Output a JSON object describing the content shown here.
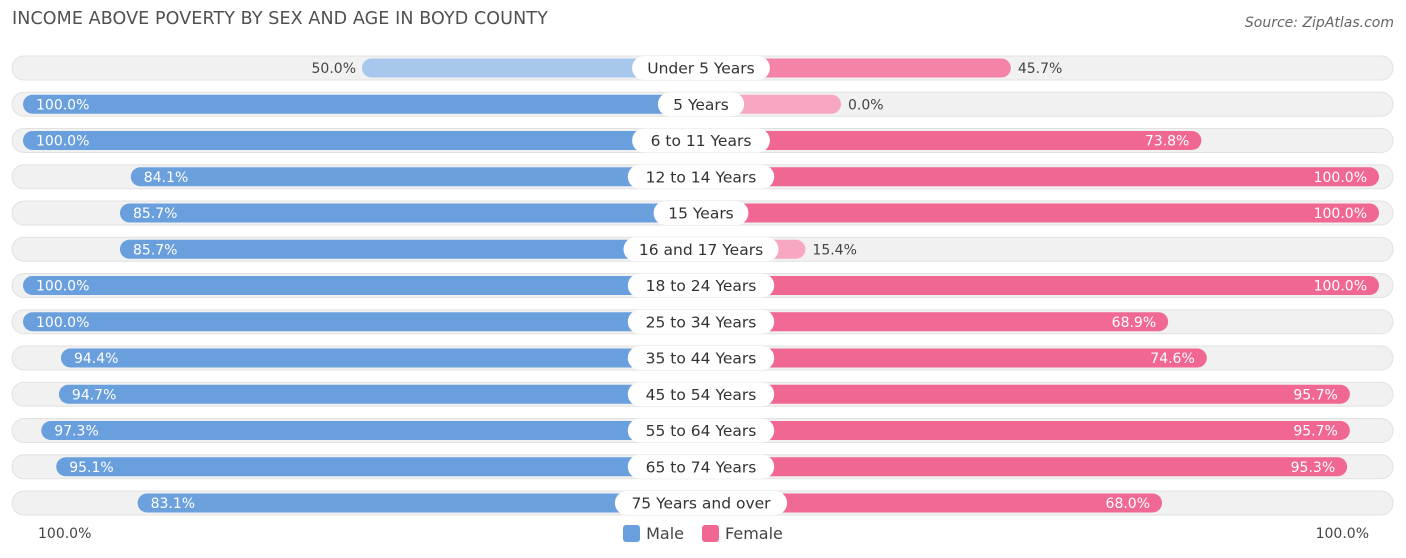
{
  "title": "INCOME ABOVE POVERTY BY SEX AND AGE IN BOYD COUNTY",
  "source": "Source: ZipAtlas.com",
  "colors": {
    "male_strong": "#6a9fdd",
    "male_light": "#a7c8ec",
    "female_strong": "#f06792",
    "female_light": "#f7a7c1",
    "track": "#f1f1f1"
  },
  "axis": {
    "left_label": "100.0%",
    "right_label": "100.0%"
  },
  "legend": {
    "male": "Male",
    "female": "Female"
  },
  "chart_data": {
    "type": "bar",
    "orientation": "horizontal-diverging",
    "title": "INCOME ABOVE POVERTY BY SEX AND AGE IN BOYD COUNTY",
    "xlim": [
      -100,
      100
    ],
    "categories": [
      "Under 5 Years",
      "5 Years",
      "6 to 11 Years",
      "12 to 14 Years",
      "15 Years",
      "16 and 17 Years",
      "18 to 24 Years",
      "25 to 34 Years",
      "35 to 44 Years",
      "45 to 54 Years",
      "55 to 64 Years",
      "65 to 74 Years",
      "75 Years and over"
    ],
    "series": [
      {
        "name": "Male",
        "values": [
          50.0,
          100.0,
          100.0,
          84.1,
          85.7,
          85.7,
          100.0,
          100.0,
          94.4,
          94.7,
          97.3,
          95.1,
          83.1
        ],
        "labels": [
          "50.0%",
          "100.0%",
          "100.0%",
          "84.1%",
          "85.7%",
          "85.7%",
          "100.0%",
          "100.0%",
          "94.4%",
          "94.7%",
          "97.3%",
          "95.1%",
          "83.1%"
        ]
      },
      {
        "name": "Female",
        "values": [
          45.7,
          0.0,
          73.8,
          100.0,
          100.0,
          15.4,
          100.0,
          68.9,
          74.6,
          95.7,
          95.7,
          95.3,
          68.0
        ],
        "labels": [
          "45.7%",
          "0.0%",
          "73.8%",
          "100.0%",
          "100.0%",
          "15.4%",
          "100.0%",
          "68.9%",
          "74.6%",
          "95.7%",
          "95.7%",
          "95.3%",
          "68.0%"
        ]
      }
    ]
  }
}
